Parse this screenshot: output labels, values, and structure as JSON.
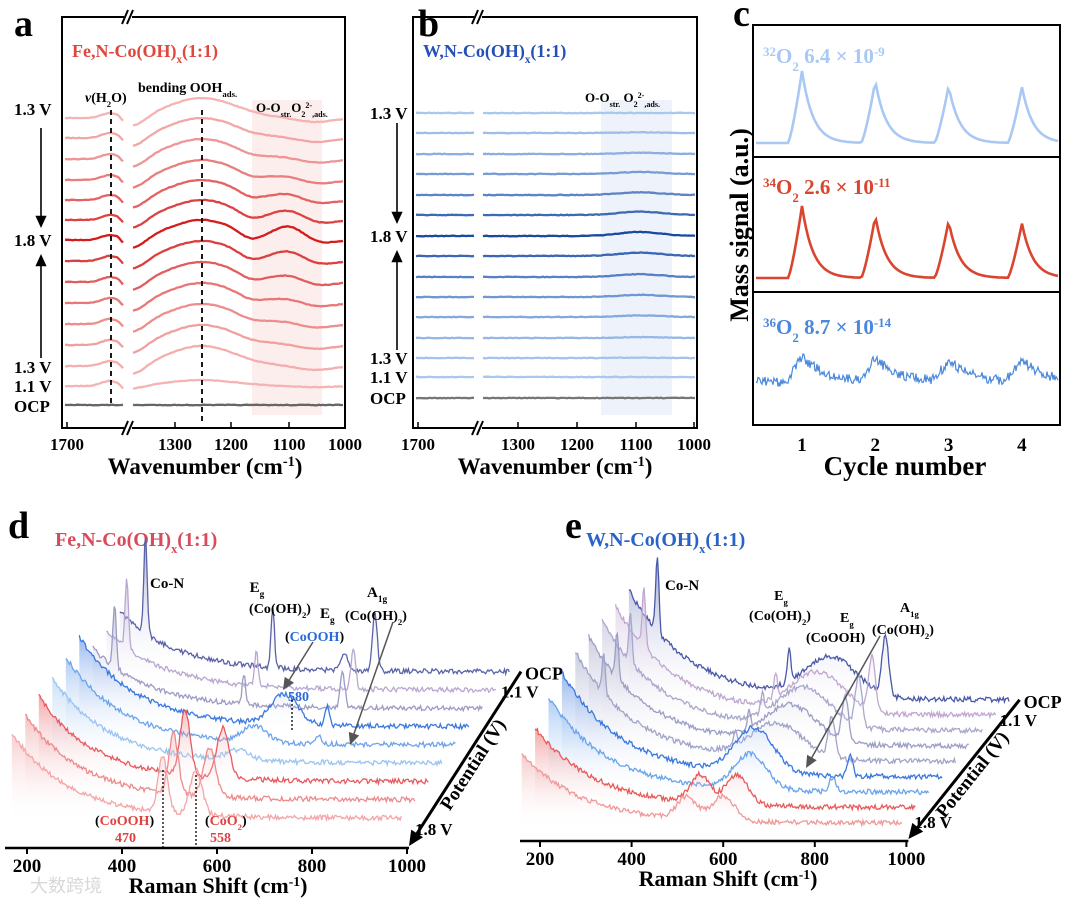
{
  "figure": {
    "panel_letters": [
      "a",
      "b",
      "c",
      "d",
      "e"
    ],
    "watermark": "大数跨境"
  },
  "chart_data": [
    {
      "panel": "a",
      "type": "line",
      "title": [
        [
          "Fe,N-Co(OH)",
          ""
        ],
        [
          "x",
          "sub"
        ],
        [
          "(1:1)",
          ""
        ]
      ],
      "xlabel": [
        [
          "Wavenumber (cm",
          ""
        ],
        [
          "-1",
          "sup"
        ],
        [
          ")",
          ""
        ]
      ],
      "xticks": [
        "1700",
        "1300",
        "1200",
        "1100",
        "1000"
      ],
      "xlim": [
        1700,
        1000
      ],
      "axis_break": "//",
      "potential_labels": [
        "1.3 V",
        "1.8 V",
        "1.3 V",
        "1.1 V",
        "OCP"
      ],
      "annotations": [
        [
          [
            "v",
            "it"
          ],
          [
            "(H",
            ""
          ],
          [
            "2",
            "sub"
          ],
          [
            "O)",
            ""
          ]
        ],
        [
          [
            "bending OOH",
            ""
          ],
          [
            "ads.",
            "sub"
          ]
        ],
        [
          [
            "O-O",
            ""
          ],
          [
            "str.",
            "sub"
          ],
          [
            "O",
            ""
          ],
          [
            "2",
            "sub"
          ],
          [
            "2-",
            "sup"
          ],
          [
            ",ads.",
            "sub"
          ]
        ]
      ],
      "dashed_markers_cm": [
        1640,
        1240
      ],
      "shaded_range_cm": [
        1160,
        1040
      ],
      "trace_count": 15,
      "colors": {
        "light": "#f5b3b3",
        "dark": "#d41c1c",
        "ocp": "#666666",
        "title": "#e0463c"
      }
    },
    {
      "panel": "b",
      "type": "line",
      "title": [
        [
          "W,N-Co(OH)",
          ""
        ],
        [
          "x",
          "sub"
        ],
        [
          "(1:1)",
          ""
        ]
      ],
      "xlabel": [
        [
          "Wavenumber (cm",
          ""
        ],
        [
          "-1",
          "sup"
        ],
        [
          ")",
          ""
        ]
      ],
      "xticks": [
        "1700",
        "1300",
        "1200",
        "1100",
        "1000"
      ],
      "xlim": [
        1700,
        1000
      ],
      "axis_break": "//",
      "potential_labels": [
        "1.3 V",
        "1.8 V",
        "1.3 V",
        "1.1 V",
        "OCP"
      ],
      "annotations": [
        [
          [
            "O-O",
            ""
          ],
          [
            "str.",
            "sub"
          ],
          [
            " O",
            ""
          ],
          [
            "2",
            "sub"
          ],
          [
            "2-",
            "sup"
          ],
          [
            ",ads.",
            "sub"
          ]
        ]
      ],
      "shaded_range_cm": [
        1160,
        1040
      ],
      "trace_count": 15,
      "colors": {
        "light": "#a9c8f0",
        "dark": "#1a4aa0",
        "ocp": "#777777",
        "title": "#2450b8"
      }
    },
    {
      "panel": "c",
      "type": "line",
      "ylabel": "Mass signal (a.u.)",
      "xlabel": "Cycle number",
      "xticks": [
        "1",
        "2",
        "3",
        "4"
      ],
      "xlim": [
        0.3,
        4.5
      ],
      "series": [
        {
          "name": [
            [
              "32",
              "sup"
            ],
            [
              "O",
              ""
            ],
            [
              "2",
              "sub"
            ],
            [
              " 6.4 × 10",
              ""
            ],
            [
              "-9",
              "sup"
            ]
          ],
          "color": "#a9c8f4",
          "peak_heights": [
            1.0,
            0.86,
            0.79,
            0.78
          ],
          "noise": 0
        },
        {
          "name": [
            [
              "34",
              "sup"
            ],
            [
              "O",
              ""
            ],
            [
              "2",
              "sub"
            ],
            [
              " 2.6 × 10",
              ""
            ],
            [
              "-11",
              "sup"
            ]
          ],
          "color": "#d9452e",
          "peak_heights": [
            1.0,
            0.86,
            0.79,
            0.76
          ],
          "noise": 0
        },
        {
          "name": [
            [
              "36",
              "sup"
            ],
            [
              "O",
              ""
            ],
            [
              "2",
              "sub"
            ],
            [
              " 8.7 × 10",
              ""
            ],
            [
              "-14",
              "sup"
            ]
          ],
          "color": "#4a88dc",
          "peak_heights": [
            1.0,
            0.9,
            0.82,
            0.82
          ],
          "noise": 1
        }
      ]
    },
    {
      "panel": "d",
      "type": "line",
      "title": [
        [
          "Fe,N-Co(OH)",
          ""
        ],
        [
          "x",
          "sub"
        ],
        [
          "(1:1)",
          ""
        ]
      ],
      "title_color": "#d94a5a",
      "xlabel": [
        [
          "Raman Shift (cm",
          ""
        ],
        [
          "-1",
          "sup"
        ],
        [
          ")",
          ""
        ]
      ],
      "zlabel": "Potential (V)",
      "xticks": [
        "200",
        "400",
        "600",
        "800",
        "1000"
      ],
      "xlim": [
        200,
        1000
      ],
      "potential_labels": [
        "OCP",
        "1.1 V",
        "1.8 V"
      ],
      "annotations": {
        "con": "Co-N",
        "eg1": [
          [
            "E",
            ""
          ],
          [
            "g",
            "sub"
          ]
        ],
        "eg1b": [
          [
            "(Co(OH)",
            ""
          ],
          [
            "2",
            "sub"
          ],
          [
            ")",
            ""
          ]
        ],
        "eg2": [
          [
            "E",
            ""
          ],
          [
            "g",
            "sub"
          ]
        ],
        "eg2b": [
          [
            "(",
            ""
          ],
          [
            "CoOOH",
            "blue"
          ],
          [
            ")",
            ""
          ]
        ],
        "a1g": [
          [
            "A",
            ""
          ],
          [
            "1g",
            "sub"
          ]
        ],
        "a1gb": [
          [
            "(Co(OH)",
            ""
          ],
          [
            "2",
            "sub"
          ],
          [
            ")",
            ""
          ]
        ],
        "p580": "580",
        "cooh": [
          [
            "(",
            ""
          ],
          [
            "CoOOH",
            "red"
          ],
          [
            ")",
            ""
          ]
        ],
        "p470": "470",
        "coo2": [
          [
            "(",
            ""
          ],
          [
            "CoO",
            "red"
          ],
          [
            "2",
            "redsub"
          ],
          [
            ")",
            ""
          ]
        ],
        "p558": "558"
      },
      "traces": [
        {
          "color": "#f2a6a8",
          "decay": 85,
          "peaks": [
            [
              486,
              55,
              14
            ],
            [
              556,
              45,
              18
            ]
          ]
        },
        {
          "color": "#ec8a8c",
          "decay": 85,
          "peaks": [
            [
              480,
              60,
              14
            ],
            [
              556,
              48,
              18
            ]
          ]
        },
        {
          "color": "#e85a5e",
          "decay": 85,
          "peaks": [
            [
              476,
              65,
              15
            ],
            [
              556,
              50,
              18
            ]
          ]
        },
        {
          "color": "#9cc4f0",
          "decay": 85,
          "peaks": [
            [
              560,
              10,
              35
            ]
          ]
        },
        {
          "color": "#6ea4ea",
          "decay": 88,
          "peaks": [
            [
              566,
              16,
              35
            ],
            [
              700,
              8,
              8
            ]
          ]
        },
        {
          "color": "#3a78e0",
          "decay": 90,
          "peaks": [
            [
              600,
              30,
              40
            ],
            [
              690,
              18,
              6
            ]
          ]
        },
        {
          "color": "#9c9cc4",
          "decay": 60,
          "peaks": [
            [
              214,
              65,
              5
            ],
            [
              486,
              30,
              5
            ],
            [
              694,
              35,
              7
            ]
          ]
        },
        {
          "color": "#b8a8d0",
          "decay": 60,
          "peaks": [
            [
              211,
              70,
              5
            ],
            [
              484,
              35,
              5
            ],
            [
              688,
              40,
              7
            ]
          ]
        },
        {
          "color": "#5a62a8",
          "decay": 60,
          "peaks": [
            [
              222,
              100,
              5
            ],
            [
              490,
              60,
              5
            ],
            [
              640,
              18,
              10
            ],
            [
              705,
              60,
              7
            ]
          ]
        }
      ]
    },
    {
      "panel": "e",
      "type": "line",
      "title": [
        [
          "W,N-Co(OH)",
          ""
        ],
        [
          "x",
          "sub"
        ],
        [
          "(1:1)",
          ""
        ]
      ],
      "title_color": "#2a63c8",
      "xlabel": [
        [
          "Raman Shift (cm",
          ""
        ],
        [
          "-1",
          "sup"
        ],
        [
          ")",
          ""
        ]
      ],
      "zlabel": "Potential (V)",
      "xticks": [
        "200",
        "400",
        "600",
        "800",
        "1000"
      ],
      "xlim": [
        200,
        1000
      ],
      "potential_labels": [
        "OCP",
        "1.1 V",
        "1.8 V"
      ],
      "annotations": {
        "con": "Co-N",
        "eg1": [
          [
            "E",
            ""
          ],
          [
            "g",
            "sub"
          ]
        ],
        "eg1b": [
          [
            "(Co(OH)",
            ""
          ],
          [
            "2",
            "sub"
          ],
          [
            ")",
            ""
          ]
        ],
        "eg2": [
          [
            "E",
            ""
          ],
          [
            "g",
            "sub"
          ]
        ],
        "eg2b": [
          [
            "(CoOOH)",
            ""
          ]
        ],
        "a1g": [
          [
            "A",
            ""
          ],
          [
            "1g",
            "sub"
          ]
        ],
        "a1gb": [
          [
            "(Co(OH)",
            ""
          ],
          [
            "2",
            "sub"
          ],
          [
            ")",
            ""
          ]
        ]
      },
      "traces": [
        {
          "color": "#ee9a9a",
          "decay": 70,
          "peaks": [
            [
              520,
              22,
              30
            ],
            [
              600,
              25,
              35
            ]
          ]
        },
        {
          "color": "#e85a5a",
          "decay": 80,
          "peaks": [
            [
              520,
              28,
              30
            ],
            [
              600,
              30,
              35
            ]
          ]
        },
        {
          "color": "#6aa4ec",
          "decay": 95,
          "peaks": [
            [
              600,
              35,
              50
            ],
            [
              780,
              14,
              10
            ]
          ]
        },
        {
          "color": "#3a78e0",
          "decay": 105,
          "peaks": [
            [
              580,
              45,
              60
            ],
            [
              790,
              20,
              8
            ]
          ]
        },
        {
          "color": "#a0a4c8",
          "decay": 110,
          "peaks": [
            [
              222,
              40,
              5
            ],
            [
              600,
              35,
              80
            ],
            [
              510,
              15,
              5
            ],
            [
              720,
              40,
              10
            ]
          ]
        },
        {
          "color": "#9c9ec4",
          "decay": 110,
          "peaks": [
            [
              222,
              45,
              5
            ],
            [
              600,
              38,
              80
            ],
            [
              510,
              18,
              5
            ],
            [
              720,
              45,
              10
            ]
          ]
        },
        {
          "color": "#a8a8cc",
          "decay": 110,
          "peaks": [
            [
              222,
              50,
              5
            ],
            [
              600,
              40,
              80
            ],
            [
              510,
              20,
              5
            ],
            [
              720,
              50,
              10
            ]
          ]
        },
        {
          "color": "#c0a8d0",
          "decay": 110,
          "peaks": [
            [
              222,
              60,
              5
            ],
            [
              600,
              40,
              80
            ],
            [
              510,
              25,
              5
            ],
            [
              720,
              55,
              10
            ]
          ]
        },
        {
          "color": "#4a58a8",
          "decay": 110,
          "peaks": [
            [
              222,
              75,
              5
            ],
            [
              600,
              40,
              80
            ],
            [
              510,
              35,
              5
            ],
            [
              720,
              60,
              10
            ]
          ]
        }
      ]
    }
  ]
}
